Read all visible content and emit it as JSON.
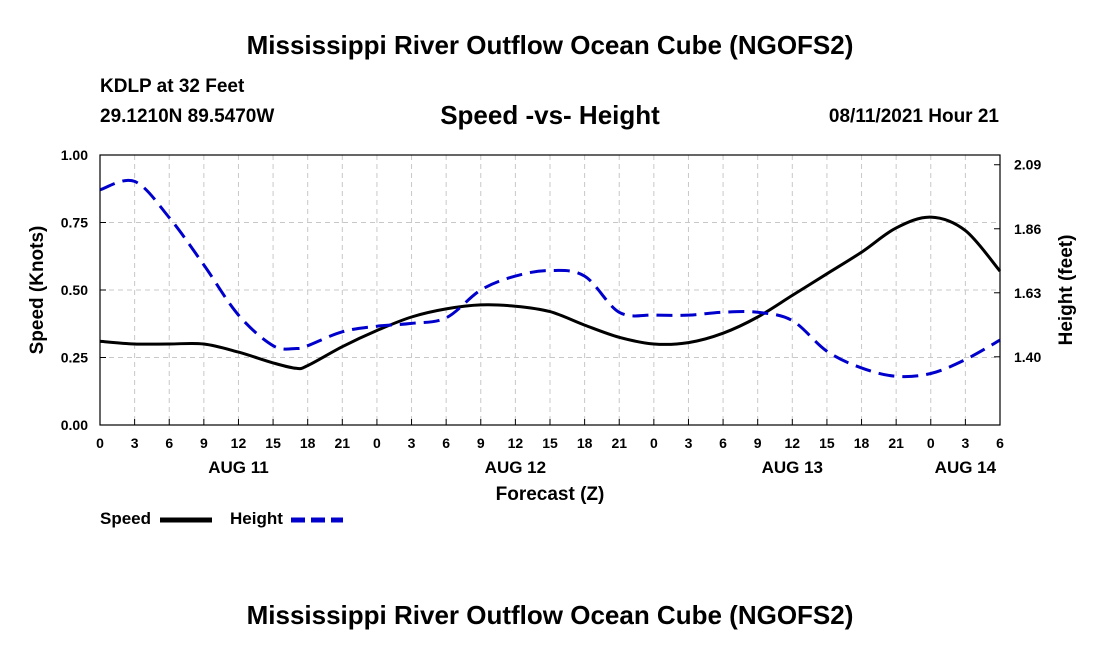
{
  "header": {
    "title": "Mississippi River Outflow Ocean Cube (NGOFS2)",
    "station": "KDLP at 32 Feet",
    "coordinates": "29.1210N  89.5470W",
    "subtitle": "Speed -vs- Height",
    "datetime": "08/11/2021 Hour 21"
  },
  "footer": {
    "title": "Mississippi River Outflow Ocean Cube (NGOFS2)"
  },
  "chart_data": {
    "type": "line",
    "title": "Speed -vs- Height",
    "xlabel": "Forecast (Z)",
    "ylabel_left": "Speed (Knots)",
    "ylabel_right": "Height (feet)",
    "x_unit": "hours since AUG 11 00Z",
    "xlim": [
      0,
      78
    ],
    "ylim_left": [
      0,
      1.0
    ],
    "ylim_right": [
      1.155,
      2.125
    ],
    "grid": true,
    "legend_placement": "bottom-left",
    "x_ticks": [
      {
        "x": 0,
        "label": "0"
      },
      {
        "x": 3,
        "label": "3"
      },
      {
        "x": 6,
        "label": "6"
      },
      {
        "x": 9,
        "label": "9"
      },
      {
        "x": 12,
        "label": "12"
      },
      {
        "x": 15,
        "label": "15"
      },
      {
        "x": 18,
        "label": "18"
      },
      {
        "x": 21,
        "label": "21"
      },
      {
        "x": 24,
        "label": "0"
      },
      {
        "x": 27,
        "label": "3"
      },
      {
        "x": 30,
        "label": "6"
      },
      {
        "x": 33,
        "label": "9"
      },
      {
        "x": 36,
        "label": "12"
      },
      {
        "x": 39,
        "label": "15"
      },
      {
        "x": 42,
        "label": "18"
      },
      {
        "x": 45,
        "label": "21"
      },
      {
        "x": 48,
        "label": "0"
      },
      {
        "x": 51,
        "label": "3"
      },
      {
        "x": 54,
        "label": "6"
      },
      {
        "x": 57,
        "label": "9"
      },
      {
        "x": 60,
        "label": "12"
      },
      {
        "x": 63,
        "label": "15"
      },
      {
        "x": 66,
        "label": "18"
      },
      {
        "x": 69,
        "label": "21"
      },
      {
        "x": 72,
        "label": "0"
      },
      {
        "x": 75,
        "label": "3"
      },
      {
        "x": 78,
        "label": "6"
      }
    ],
    "date_labels": [
      {
        "x": 12,
        "label": "AUG 11"
      },
      {
        "x": 36,
        "label": "AUG 12"
      },
      {
        "x": 60,
        "label": "AUG 13"
      },
      {
        "x": 75,
        "label": "AUG 14"
      }
    ],
    "y_ticks_left": [
      {
        "y": 0.0,
        "label": "0.00"
      },
      {
        "y": 0.25,
        "label": "0.25"
      },
      {
        "y": 0.5,
        "label": "0.50"
      },
      {
        "y": 0.75,
        "label": "0.75"
      },
      {
        "y": 1.0,
        "label": "1.00"
      }
    ],
    "y_ticks_right": [
      {
        "y": 1.4,
        "label": "1.40"
      },
      {
        "y": 1.63,
        "label": "1.63"
      },
      {
        "y": 1.86,
        "label": "1.86"
      },
      {
        "y": 2.09,
        "label": "2.09"
      }
    ],
    "series": [
      {
        "name": "Speed",
        "axis": "left",
        "color": "#000000",
        "style": "solid",
        "x": [
          0,
          3,
          6,
          9,
          12,
          15,
          17,
          18,
          21,
          24,
          27,
          30,
          33,
          36,
          39,
          42,
          45,
          48,
          51,
          54,
          57,
          60,
          63,
          66,
          69,
          72,
          75,
          78
        ],
        "y": [
          0.31,
          0.3,
          0.3,
          0.3,
          0.27,
          0.23,
          0.21,
          0.22,
          0.29,
          0.35,
          0.4,
          0.43,
          0.445,
          0.44,
          0.42,
          0.37,
          0.325,
          0.3,
          0.305,
          0.34,
          0.4,
          0.48,
          0.56,
          0.64,
          0.73,
          0.77,
          0.72,
          0.57
        ]
      },
      {
        "name": "Height",
        "axis": "right",
        "color": "#0000cc",
        "style": "dashed",
        "x": [
          0,
          3,
          6,
          9,
          12,
          15,
          17,
          18,
          21,
          24,
          27,
          30,
          33,
          36,
          39,
          42,
          45,
          48,
          51,
          54,
          57,
          60,
          63,
          66,
          69,
          72,
          75,
          78
        ],
        "y": [
          2.0,
          2.03,
          1.9,
          1.73,
          1.55,
          1.44,
          1.43,
          1.44,
          1.49,
          1.51,
          1.52,
          1.54,
          1.64,
          1.69,
          1.71,
          1.69,
          1.56,
          1.55,
          1.55,
          1.56,
          1.56,
          1.53,
          1.42,
          1.36,
          1.33,
          1.34,
          1.39,
          1.46
        ]
      }
    ]
  }
}
